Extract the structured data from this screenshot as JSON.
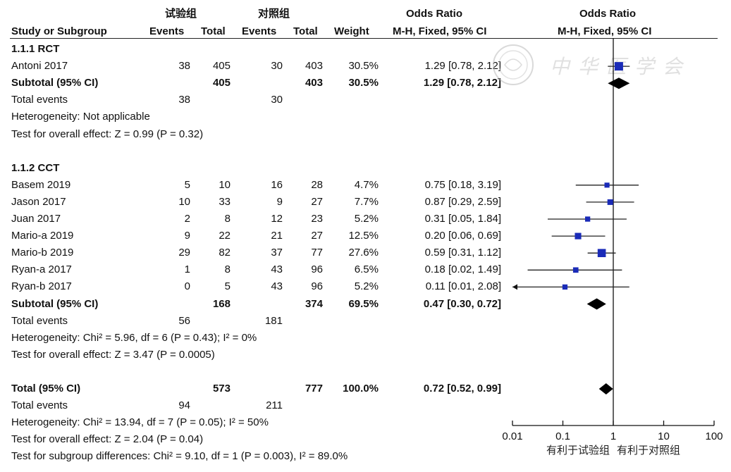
{
  "headers": {
    "group_exp": "试验组",
    "group_ctl": "对照组",
    "odds_ratio_left": "Odds Ratio",
    "odds_ratio_right": "Odds Ratio",
    "study": "Study or Subgroup",
    "events": "Events",
    "total": "Total",
    "events2": "Events",
    "total2": "Total",
    "weight": "Weight",
    "method_left": "M-H, Fixed, 95% CI",
    "method_right": "M-H, Fixed, 95% CI"
  },
  "watermark": "中华医学会",
  "rows": [
    {
      "kind": "subgroup",
      "name": "1.1.1 RCT"
    },
    {
      "kind": "study",
      "name": "Antoni 2017",
      "e1": "38",
      "t1": "405",
      "e2": "30",
      "t2": "403",
      "w": "30.5%",
      "or": "1.29 [0.78, 2.12]"
    },
    {
      "kind": "subtotal",
      "name": "Subtotal (95% CI)",
      "e1": "",
      "t1": "405",
      "e2": "",
      "t2": "403",
      "w": "30.5%",
      "or": "1.29 [0.78, 2.12]"
    },
    {
      "kind": "text",
      "name": "Total events",
      "e1": "38",
      "e2": "30"
    },
    {
      "kind": "text",
      "name": "Heterogeneity: Not applicable"
    },
    {
      "kind": "text",
      "name": "Test for overall effect: Z = 0.99 (P = 0.32)"
    },
    {
      "kind": "blank"
    },
    {
      "kind": "subgroup",
      "name": "1.1.2 CCT"
    },
    {
      "kind": "study",
      "name": "Basem 2019",
      "e1": "5",
      "t1": "10",
      "e2": "16",
      "t2": "28",
      "w": "4.7%",
      "or": "0.75 [0.18, 3.19]"
    },
    {
      "kind": "study",
      "name": "Jason 2017",
      "e1": "10",
      "t1": "33",
      "e2": "9",
      "t2": "27",
      "w": "7.7%",
      "or": "0.87 [0.29, 2.59]"
    },
    {
      "kind": "study",
      "name": "Juan 2017",
      "e1": "2",
      "t1": "8",
      "e2": "12",
      "t2": "23",
      "w": "5.2%",
      "or": "0.31 [0.05, 1.84]"
    },
    {
      "kind": "study",
      "name": "Mario-a 2019",
      "e1": "9",
      "t1": "22",
      "e2": "21",
      "t2": "27",
      "w": "12.5%",
      "or": "0.20 [0.06, 0.69]"
    },
    {
      "kind": "study",
      "name": "Mario-b 2019",
      "e1": "29",
      "t1": "82",
      "e2": "37",
      "t2": "77",
      "w": "27.6%",
      "or": "0.59 [0.31, 1.12]"
    },
    {
      "kind": "study",
      "name": "Ryan-a 2017",
      "e1": "1",
      "t1": "8",
      "e2": "43",
      "t2": "96",
      "w": "6.5%",
      "or": "0.18 [0.02, 1.49]"
    },
    {
      "kind": "study",
      "name": "Ryan-b 2017",
      "e1": "0",
      "t1": "5",
      "e2": "43",
      "t2": "96",
      "w": "5.2%",
      "or": "0.11 [0.01, 2.08]"
    },
    {
      "kind": "subtotal",
      "name": "Subtotal (95% CI)",
      "e1": "",
      "t1": "168",
      "e2": "",
      "t2": "374",
      "w": "69.5%",
      "or": "0.47 [0.30, 0.72]"
    },
    {
      "kind": "text",
      "name": "Total events",
      "e1": "56",
      "e2": "181"
    },
    {
      "kind": "text",
      "name": "Heterogeneity: Chi² = 5.96, df = 6 (P = 0.43); I² = 0%"
    },
    {
      "kind": "text",
      "name": "Test for overall effect: Z = 3.47 (P = 0.0005)"
    },
    {
      "kind": "blank"
    },
    {
      "kind": "subtotal",
      "name": "Total (95% CI)",
      "e1": "",
      "t1": "573",
      "e2": "",
      "t2": "777",
      "w": "100.0%",
      "or": "0.72 [0.52, 0.99]"
    },
    {
      "kind": "text",
      "name": "Total events",
      "e1": "94",
      "e2": "211"
    },
    {
      "kind": "text",
      "name": "Heterogeneity: Chi² = 13.94, df = 7 (P = 0.05); I² = 50%"
    },
    {
      "kind": "text",
      "name": "Test for overall effect: Z = 2.04 (P = 0.04)"
    },
    {
      "kind": "text",
      "name": "Test for subgroup differences: Chi² = 9.10, df = 1 (P = 0.003), I² = 89.0%"
    }
  ],
  "chart_data": {
    "type": "scatter",
    "subtype": "forest-plot",
    "x_scale": "log",
    "xlim": [
      0.01,
      100
    ],
    "x_ticks": [
      "0.01",
      "0.1",
      "1",
      "10",
      "100"
    ],
    "x_tick_values": [
      0.01,
      0.1,
      1,
      10,
      100
    ],
    "axis_label_left": "有利于试验组",
    "axis_label_right": "有利于对照组",
    "marker_color": "#1a2bb8",
    "diamond_color": "#000000",
    "studies": [
      {
        "name": "Antoni 2017",
        "or": 1.29,
        "lo": 0.78,
        "hi": 2.12,
        "weight": 30.5
      },
      {
        "name": "Basem 2019",
        "or": 0.75,
        "lo": 0.18,
        "hi": 3.19,
        "weight": 4.7
      },
      {
        "name": "Jason 2017",
        "or": 0.87,
        "lo": 0.29,
        "hi": 2.59,
        "weight": 7.7
      },
      {
        "name": "Juan 2017",
        "or": 0.31,
        "lo": 0.05,
        "hi": 1.84,
        "weight": 5.2
      },
      {
        "name": "Mario-a 2019",
        "or": 0.2,
        "lo": 0.06,
        "hi": 0.69,
        "weight": 12.5
      },
      {
        "name": "Mario-b 2019",
        "or": 0.59,
        "lo": 0.31,
        "hi": 1.12,
        "weight": 27.6
      },
      {
        "name": "Ryan-a 2017",
        "or": 0.18,
        "lo": 0.02,
        "hi": 1.49,
        "weight": 6.5
      },
      {
        "name": "Ryan-b 2017",
        "or": 0.11,
        "lo": 0.01,
        "hi": 2.08,
        "weight": 5.2
      }
    ],
    "pooled": [
      {
        "name": "Subtotal 1.1.1 RCT",
        "or": 1.29,
        "lo": 0.78,
        "hi": 2.12
      },
      {
        "name": "Subtotal 1.1.2 CCT",
        "or": 0.47,
        "lo": 0.3,
        "hi": 0.72
      },
      {
        "name": "Total",
        "or": 0.72,
        "lo": 0.52,
        "hi": 0.99
      }
    ]
  }
}
